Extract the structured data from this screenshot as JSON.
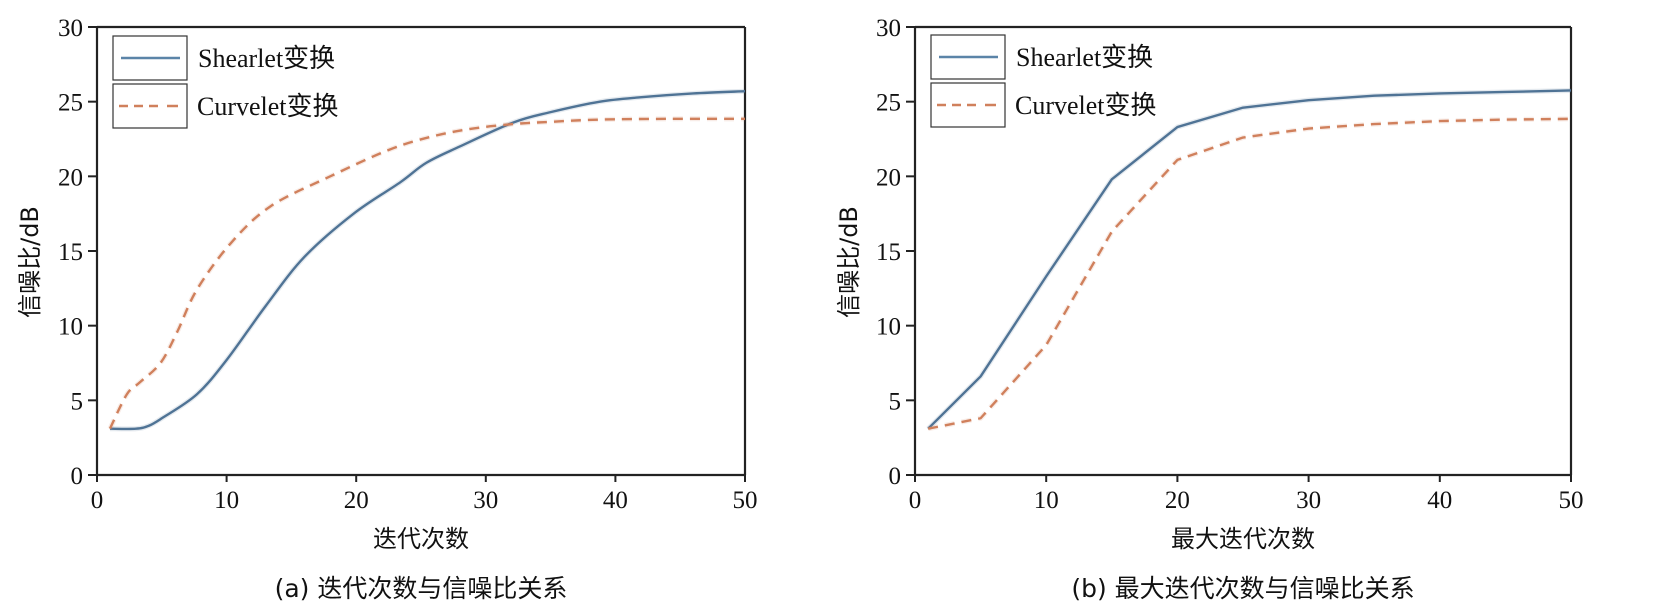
{
  "chart_data": [
    {
      "type": "line",
      "panel": "a",
      "title": "",
      "caption": "(a) 迭代次数与信噪比关系",
      "xlabel": "迭代次数",
      "ylabel": "信噪比/dB",
      "xlim": [
        0,
        50
      ],
      "ylim": [
        0,
        30
      ],
      "xticks": [
        0,
        10,
        20,
        30,
        40,
        50
      ],
      "yticks": [
        0,
        5,
        10,
        15,
        20,
        25,
        30
      ],
      "grid": false,
      "legend_position": "top-left",
      "smooth": true,
      "series": [
        {
          "name": "Shearlet变换",
          "color": "#4f7395",
          "style": "solid",
          "x": [
            1,
            3,
            4,
            5,
            7.7,
            10,
            13,
            16,
            19.8,
            23.4,
            25.4,
            28,
            32.1,
            35,
            38.8,
            42,
            46,
            50
          ],
          "y": [
            3.1,
            3.1,
            3.3,
            3.8,
            5.4,
            7.7,
            11.3,
            14.6,
            17.5,
            19.6,
            20.9,
            22.0,
            23.6,
            24.3,
            25.0,
            25.3,
            25.55,
            25.7
          ]
        },
        {
          "name": "Curvelet变换",
          "color": "#d0805c",
          "style": "dashed",
          "x": [
            1,
            2.3,
            3.3,
            4.9,
            6.2,
            7.7,
            10.3,
            13.4,
            18,
            22.6,
            26,
            29,
            32.1,
            35,
            38.8,
            44,
            50
          ],
          "y": [
            3.1,
            5.4,
            6.2,
            7.5,
            9.6,
            12.4,
            15.5,
            18.0,
            20.0,
            21.8,
            22.7,
            23.2,
            23.5,
            23.65,
            23.8,
            23.85,
            23.85
          ]
        }
      ]
    },
    {
      "type": "line",
      "panel": "b",
      "title": "",
      "caption": "(b) 最大迭代次数与信噪比关系",
      "xlabel": "最大迭代次数",
      "ylabel": "信噪比/dB",
      "xlim": [
        0,
        50
      ],
      "ylim": [
        0,
        30
      ],
      "xticks": [
        0,
        10,
        20,
        30,
        40,
        50
      ],
      "yticks": [
        0,
        5,
        10,
        15,
        20,
        25,
        30
      ],
      "grid": false,
      "legend_position": "top-left",
      "smooth": false,
      "series": [
        {
          "name": "Shearlet变换",
          "color": "#4f7395",
          "style": "solid",
          "x": [
            1,
            5,
            10,
            15,
            20,
            25,
            30,
            35,
            40,
            45,
            50
          ],
          "y": [
            3.1,
            6.6,
            13.3,
            19.8,
            23.3,
            24.6,
            25.1,
            25.4,
            25.55,
            25.65,
            25.75
          ]
        },
        {
          "name": "Curvelet变换",
          "color": "#d0805c",
          "style": "dashed",
          "x": [
            1,
            5,
            10,
            15,
            20,
            25,
            30,
            35,
            40,
            45,
            50
          ],
          "y": [
            3.1,
            3.8,
            8.7,
            16.3,
            21.1,
            22.6,
            23.2,
            23.5,
            23.7,
            23.8,
            23.85
          ]
        }
      ]
    }
  ]
}
